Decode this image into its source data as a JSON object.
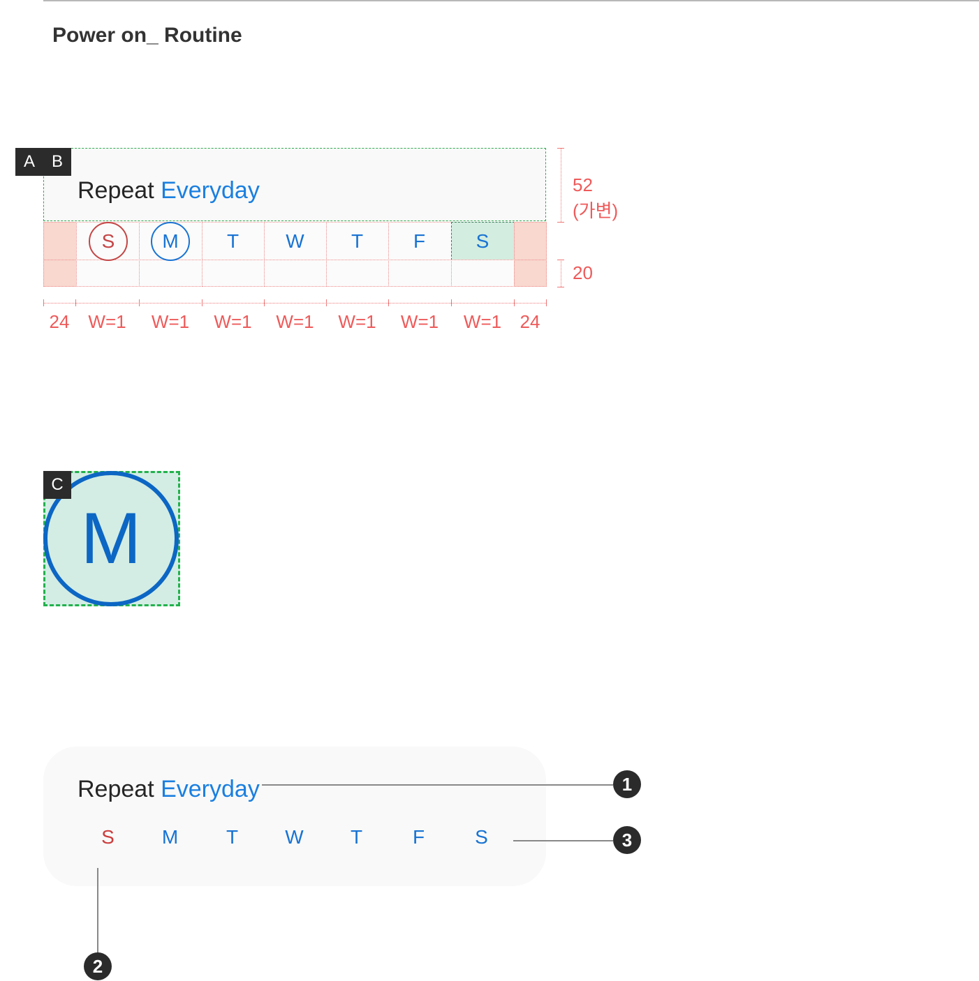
{
  "header": {
    "title": "Power on_ Routine"
  },
  "tags": {
    "a": "A",
    "b": "B",
    "c": "C"
  },
  "repeat": {
    "prefix": "Repeat ",
    "value": "Everyday"
  },
  "days": [
    "S",
    "M",
    "T",
    "W",
    "T",
    "F",
    "S"
  ],
  "spec": {
    "height_title": "52",
    "height_title_note": "(가변)",
    "height_bottom": "20",
    "side_padding": "24",
    "widths": [
      "W=1",
      "W=1",
      "W=1",
      "W=1",
      "W=1",
      "W=1",
      "W=1"
    ]
  },
  "big_day": {
    "label": "M"
  },
  "callouts": [
    "1",
    "2",
    "3"
  ],
  "colors": {
    "accent": "#1a7fe0",
    "weekday": "#1873d3",
    "sunday": "#cc3d3d",
    "spec_red": "#ee5a5a",
    "guide_green": "#22b14c",
    "selected_fill": "#d3ede4",
    "card_bg": "#f9f9f9"
  }
}
